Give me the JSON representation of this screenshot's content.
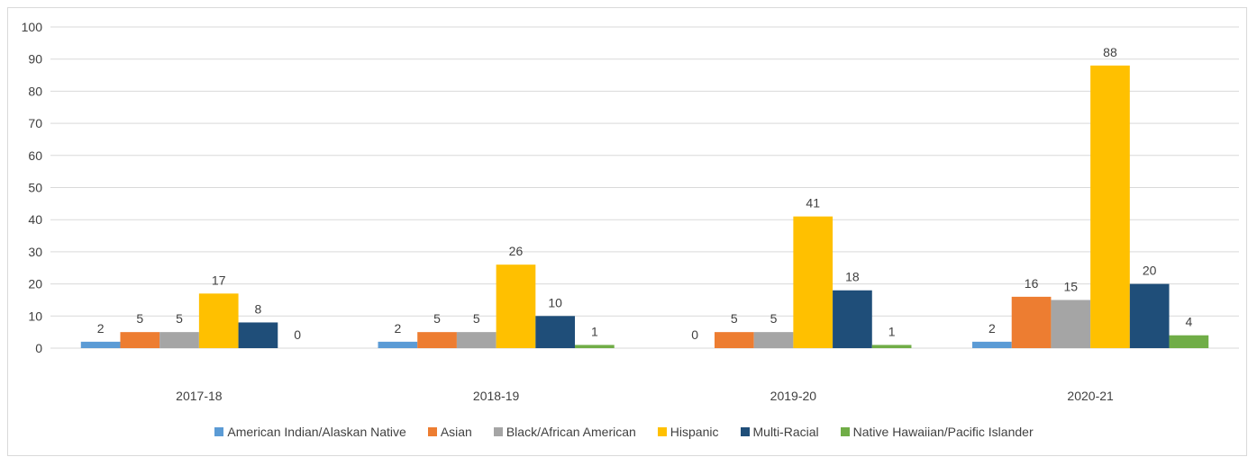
{
  "chart_data": {
    "type": "bar",
    "title": "",
    "xlabel": "",
    "ylabel": "",
    "ylim": [
      0,
      100
    ],
    "yticks": [
      0,
      10,
      20,
      30,
      40,
      50,
      60,
      70,
      80,
      90,
      100
    ],
    "grid": true,
    "legend_position": "bottom",
    "categories": [
      "2017-18",
      "2018-19",
      "2019-20",
      "2020-21"
    ],
    "series": [
      {
        "name": "American Indian/Alaskan Native",
        "color": "#5b9bd5",
        "values": [
          2,
          2,
          0,
          2
        ]
      },
      {
        "name": "Asian",
        "color": "#ed7d31",
        "values": [
          5,
          5,
          5,
          16
        ]
      },
      {
        "name": "Black/African American",
        "color": "#a5a5a5",
        "values": [
          5,
          5,
          5,
          15
        ]
      },
      {
        "name": "Hispanic",
        "color": "#ffc000",
        "values": [
          17,
          26,
          41,
          88
        ]
      },
      {
        "name": "Multi-Racial",
        "color": "#1f4e79",
        "values": [
          8,
          10,
          18,
          20
        ]
      },
      {
        "name": "Native Hawaiian/Pacific Islander",
        "color": "#70ad47",
        "values": [
          0,
          1,
          1,
          4
        ]
      }
    ]
  }
}
